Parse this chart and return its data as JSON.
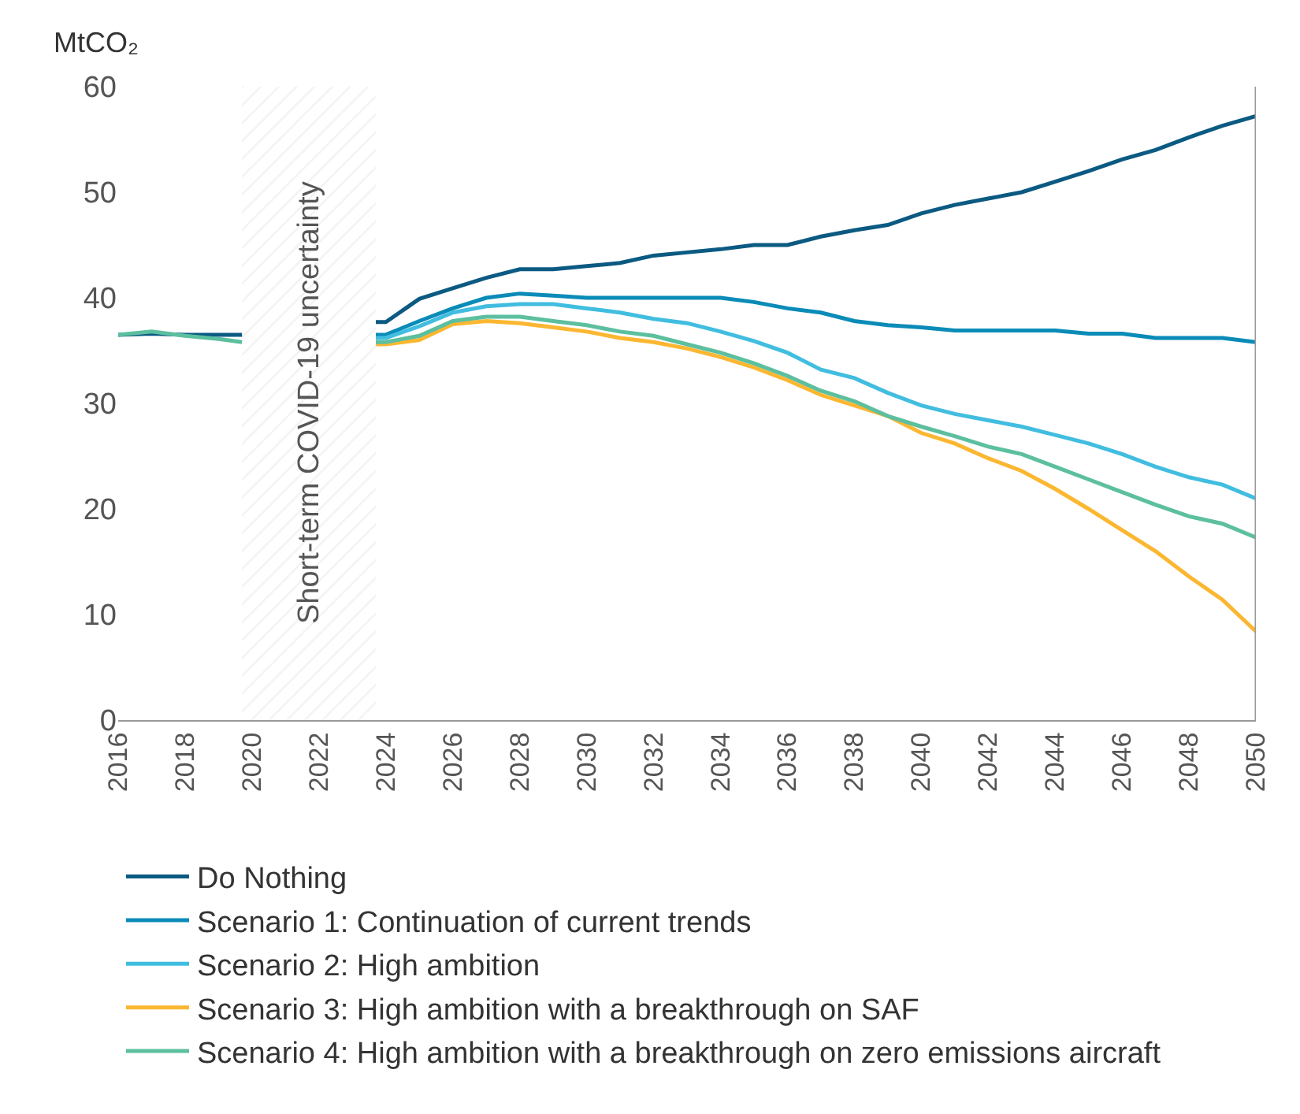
{
  "chart_data": {
    "type": "line",
    "ylabel": "MtCO₂",
    "x": [
      2016,
      2017,
      2018,
      2019,
      2019.7,
      2021.7,
      2023.7,
      2024,
      2025,
      2026,
      2027,
      2028,
      2029,
      2030,
      2031,
      2032,
      2033,
      2034,
      2035,
      2036,
      2037,
      2038,
      2039,
      2040,
      2041,
      2042,
      2043,
      2044,
      2045,
      2046,
      2047,
      2048,
      2049,
      2050
    ],
    "series": [
      {
        "name": "Do Nothing",
        "color": "#0b5a82",
        "values": [
          36.5,
          36.6,
          36.5,
          36.5,
          36.5,
          null,
          37.7,
          37.7,
          39.9,
          40.9,
          41.9,
          42.7,
          42.7,
          43.0,
          43.3,
          44.0,
          44.3,
          44.6,
          45.0,
          45.0,
          45.8,
          46.4,
          46.9,
          48.0,
          48.8,
          49.4,
          50.0,
          51.0,
          52.0,
          53.1,
          54.0,
          55.2,
          56.3,
          57.2
        ]
      },
      {
        "name": "Scenario 1: Continuation of current trends",
        "color": "#0a8bb8",
        "values": [
          null,
          null,
          null,
          null,
          null,
          null,
          36.5,
          36.5,
          37.8,
          39.0,
          40.0,
          40.4,
          40.2,
          40.0,
          40.0,
          40.0,
          40.0,
          40.0,
          39.6,
          39.0,
          38.6,
          37.8,
          37.4,
          37.2,
          36.9,
          36.9,
          36.9,
          36.9,
          36.6,
          36.6,
          36.2,
          36.2,
          36.2,
          35.8
        ]
      },
      {
        "name": "Scenario 2: High ambition",
        "color": "#41bde0",
        "values": [
          null,
          null,
          null,
          null,
          null,
          null,
          36.2,
          36.2,
          37.3,
          38.6,
          39.2,
          39.4,
          39.4,
          39.0,
          38.6,
          38.0,
          37.6,
          36.8,
          35.9,
          34.8,
          33.2,
          32.4,
          31.0,
          29.8,
          29.0,
          28.4,
          27.8,
          27.0,
          26.2,
          25.2,
          24.0,
          23.0,
          22.3,
          21.0
        ]
      },
      {
        "name": "Scenario 3: High ambition with a breakthrough on SAF",
        "color": "#fbb731",
        "values": [
          null,
          null,
          null,
          null,
          null,
          null,
          35.6,
          35.6,
          36.0,
          37.5,
          37.8,
          37.6,
          37.2,
          36.8,
          36.2,
          35.8,
          35.2,
          34.4,
          33.4,
          32.2,
          30.8,
          29.8,
          28.8,
          27.2,
          26.2,
          24.8,
          23.6,
          21.9,
          20.0,
          18.0,
          16.0,
          13.6,
          11.4,
          8.4
        ]
      },
      {
        "name": "Scenario 4: High ambition with a breakthrough on zero emissions aircraft",
        "color": "#5cbf9f",
        "values": [
          36.5,
          36.8,
          36.4,
          36.1,
          35.8,
          null,
          35.8,
          35.8,
          36.4,
          37.8,
          38.2,
          38.2,
          37.8,
          37.4,
          36.8,
          36.4,
          35.6,
          34.8,
          33.8,
          32.6,
          31.2,
          30.2,
          28.8,
          27.8,
          26.9,
          25.9,
          25.2,
          24.0,
          22.8,
          21.6,
          20.4,
          19.3,
          18.6,
          17.3
        ]
      }
    ],
    "bands": [
      {
        "axis": "x",
        "from": 2019.7,
        "to": 2023.7,
        "label": "Short-term COVID-19 uncertainty",
        "color": "#e6e6e6"
      }
    ],
    "xlim": [
      2016,
      2050
    ],
    "xticks": [
      2016,
      2018,
      2020,
      2022,
      2024,
      2026,
      2028,
      2030,
      2032,
      2034,
      2036,
      2038,
      2040,
      2042,
      2044,
      2046,
      2048,
      2050
    ],
    "ylim": [
      0,
      60
    ],
    "yticks": [
      0,
      10,
      20,
      30,
      40,
      50,
      60
    ],
    "legend": "bottom",
    "marker": "none",
    "line_style": "solid"
  }
}
